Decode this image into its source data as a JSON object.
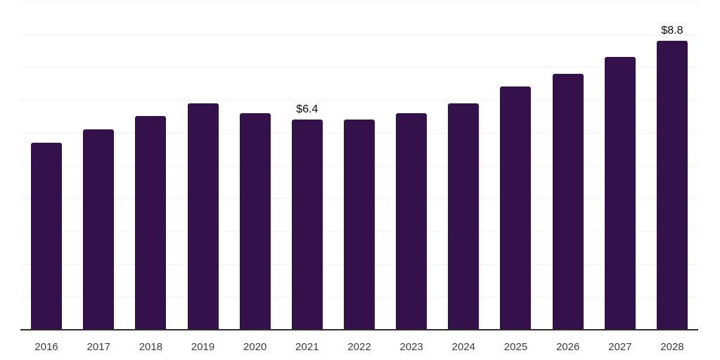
{
  "chart_data": {
    "type": "bar",
    "title": "",
    "xlabel": "",
    "ylabel": "",
    "categories": [
      "2016",
      "2017",
      "2018",
      "2019",
      "2020",
      "2021",
      "2022",
      "2023",
      "2024",
      "2025",
      "2026",
      "2027",
      "2028"
    ],
    "values": [
      5.7,
      6.1,
      6.5,
      6.9,
      6.6,
      6.4,
      6.4,
      6.6,
      6.9,
      7.4,
      7.8,
      8.3,
      8.8
    ],
    "bar_labels": [
      null,
      null,
      null,
      null,
      null,
      "$6.4",
      null,
      null,
      null,
      null,
      null,
      null,
      "$8.8"
    ],
    "value_prefix": "$",
    "ylim": [
      0,
      10
    ],
    "gridline_step": 1,
    "grid": true,
    "legend": "none",
    "colors": {
      "bar": "#34114a",
      "gridline": "#f2f2f2",
      "axis_line": "#2e2e2e",
      "tick_label": "#3c3c3c",
      "value_label": "#0a0a0a",
      "background": "#ffffff"
    }
  }
}
